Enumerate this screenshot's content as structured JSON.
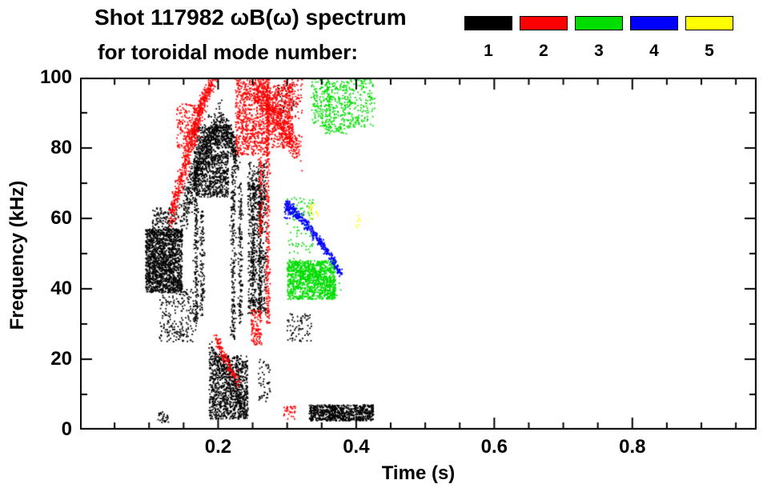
{
  "title": "Shot 117982 ωB(ω) spectrum",
  "subtitle": "for toroidal mode number:",
  "legend": {
    "modes": [
      {
        "label": "1",
        "color": "#000000"
      },
      {
        "label": "2",
        "color": "#ff0000"
      },
      {
        "label": "3",
        "color": "#00dd00"
      },
      {
        "label": "4",
        "color": "#0000ff"
      },
      {
        "label": "5",
        "color": "#ffff00"
      }
    ]
  },
  "chart_data": {
    "type": "scatter",
    "title": "Shot 117982 ωB(ω) spectrum for toroidal mode number 1-5",
    "xlabel": "Time (s)",
    "ylabel": "Frequency (kHz)",
    "xlim": [
      0,
      0.98
    ],
    "ylim": [
      0,
      100
    ],
    "x_ticks": {
      "major": [
        0.2,
        0.4,
        0.6,
        0.8
      ],
      "labels": [
        "0.2",
        "0.4",
        "0.6",
        "0.8"
      ],
      "minor_step": 0.05
    },
    "y_ticks": {
      "major": [
        0,
        20,
        40,
        60,
        80,
        100
      ],
      "labels": [
        "0",
        "20",
        "40",
        "60",
        "80",
        "100"
      ],
      "minor_step": 10
    },
    "grid": false,
    "legend_position": "top-right",
    "series": [
      {
        "name": "n=1",
        "color": "#000000",
        "clusters": [
          {
            "shape": "blob",
            "t": [
              0.095,
              0.148
            ],
            "f": [
              39,
              57
            ],
            "n": 1500
          },
          {
            "shape": "blob",
            "t": [
              0.105,
              0.14
            ],
            "f": [
              55,
              63
            ],
            "n": 150
          },
          {
            "shape": "blob",
            "t": [
              0.115,
              0.165
            ],
            "f": [
              25,
              40
            ],
            "n": 220
          },
          {
            "shape": "arc",
            "p0": [
              0.148,
              60
            ],
            "cp": [
              0.175,
              80
            ],
            "p1": [
              0.205,
              88
            ],
            "wt": 0.006,
            "wf": 5,
            "n": 500
          },
          {
            "shape": "blob",
            "t": [
              0.165,
              0.215
            ],
            "f": [
              66,
              86
            ],
            "n": 900
          },
          {
            "shape": "arc",
            "p0": [
              0.205,
              87
            ],
            "cp": [
              0.218,
              84
            ],
            "p1": [
              0.228,
              76
            ],
            "wt": 0.004,
            "wf": 4,
            "n": 220
          },
          {
            "shape": "vline",
            "t": 0.168,
            "f": [
              28,
              66
            ],
            "wt": 0.003,
            "n": 160
          },
          {
            "shape": "vline",
            "t": 0.177,
            "f": [
              32,
              62
            ],
            "wt": 0.003,
            "n": 110
          },
          {
            "shape": "vline",
            "t": 0.222,
            "f": [
              25,
              76
            ],
            "wt": 0.0035,
            "n": 200
          },
          {
            "shape": "vline",
            "t": 0.232,
            "f": [
              30,
              70
            ],
            "wt": 0.003,
            "n": 140
          },
          {
            "shape": "blob",
            "t": [
              0.243,
              0.27
            ],
            "f": [
              33,
              76
            ],
            "n": 520
          },
          {
            "shape": "vline",
            "t": 0.251,
            "f": [
              35,
              73
            ],
            "wt": 0.003,
            "n": 150
          },
          {
            "shape": "vline",
            "t": 0.261,
            "f": [
              33,
              70
            ],
            "wt": 0.003,
            "n": 150
          },
          {
            "shape": "blob",
            "t": [
              0.187,
              0.243
            ],
            "f": [
              3,
              21
            ],
            "n": 900
          },
          {
            "shape": "arc",
            "p0": [
              0.19,
              23
            ],
            "cp": [
              0.215,
              14
            ],
            "p1": [
              0.24,
              6
            ],
            "wt": 0.006,
            "wf": 3,
            "n": 200
          },
          {
            "shape": "blob",
            "t": [
              0.332,
              0.425
            ],
            "f": [
              2.5,
              7
            ],
            "n": 750
          },
          {
            "shape": "blob",
            "t": [
              0.113,
              0.128
            ],
            "f": [
              2,
              5
            ],
            "n": 30
          },
          {
            "shape": "blob",
            "t": [
              0.3,
              0.335
            ],
            "f": [
              25,
              33
            ],
            "n": 70
          },
          {
            "shape": "blob",
            "t": [
              0.285,
              0.31
            ],
            "f": [
              90,
              100
            ],
            "n": 40
          },
          {
            "shape": "blob",
            "t": [
              0.258,
              0.276
            ],
            "f": [
              8,
              20
            ],
            "n": 50
          }
        ]
      },
      {
        "name": "n=2",
        "color": "#ff0000",
        "clusters": [
          {
            "shape": "arc",
            "p0": [
              0.132,
              60
            ],
            "cp": [
              0.155,
              79
            ],
            "p1": [
              0.178,
              93
            ],
            "wt": 0.005,
            "wf": 3,
            "n": 520
          },
          {
            "shape": "arc",
            "p0": [
              0.178,
              93
            ],
            "cp": [
              0.187,
              97
            ],
            "p1": [
              0.197,
              101
            ],
            "wt": 0.004,
            "wf": 2.5,
            "n": 160
          },
          {
            "shape": "blob",
            "t": [
              0.14,
              0.168
            ],
            "f": [
              80,
              93
            ],
            "n": 150
          },
          {
            "shape": "blob",
            "t": [
              0.225,
              0.272
            ],
            "f": [
              78,
              101
            ],
            "n": 750
          },
          {
            "shape": "arc",
            "p0": [
              0.255,
              97
            ],
            "cp": [
              0.285,
              89
            ],
            "p1": [
              0.318,
              79
            ],
            "wt": 0.006,
            "wf": 4,
            "n": 420
          },
          {
            "shape": "blob",
            "t": [
              0.27,
              0.308
            ],
            "f": [
              80,
              98
            ],
            "n": 420
          },
          {
            "shape": "vline",
            "t": 0.272,
            "f": [
              30,
              100
            ],
            "wt": 0.0032,
            "n": 260
          },
          {
            "shape": "vline",
            "t": 0.262,
            "f": [
              55,
              80
            ],
            "wt": 0.003,
            "n": 80
          },
          {
            "shape": "arc",
            "p0": [
              0.196,
              26
            ],
            "cp": [
              0.211,
              20
            ],
            "p1": [
              0.228,
              13
            ],
            "wt": 0.004,
            "wf": 1.5,
            "n": 130
          },
          {
            "shape": "blob",
            "t": [
              0.248,
              0.263
            ],
            "f": [
              24,
              34
            ],
            "n": 110
          },
          {
            "shape": "blob",
            "t": [
              0.295,
              0.312
            ],
            "f": [
              3,
              7
            ],
            "n": 35
          },
          {
            "shape": "blob",
            "t": [
              0.296,
              0.322
            ],
            "f": [
              88,
              100
            ],
            "n": 90
          }
        ]
      },
      {
        "name": "n=3",
        "color": "#00dd00",
        "clusters": [
          {
            "shape": "blob",
            "t": [
              0.3,
              0.37
            ],
            "f": [
              37,
              48
            ],
            "n": 950
          },
          {
            "shape": "arc",
            "p0": [
              0.305,
              47
            ],
            "cp": [
              0.337,
              43
            ],
            "p1": [
              0.372,
              40
            ],
            "wt": 0.008,
            "wf": 2.5,
            "n": 220
          },
          {
            "shape": "blob",
            "t": [
              0.335,
              0.362
            ],
            "f": [
              86,
              100
            ],
            "n": 170
          },
          {
            "shape": "blob",
            "t": [
              0.355,
              0.392
            ],
            "f": [
              84,
              99
            ],
            "n": 230
          },
          {
            "shape": "blob",
            "t": [
              0.39,
              0.427
            ],
            "f": [
              86,
              101
            ],
            "n": 170
          },
          {
            "shape": "blob",
            "t": [
              0.3,
              0.338
            ],
            "f": [
              50,
              66
            ],
            "n": 90
          }
        ]
      },
      {
        "name": "n=4",
        "color": "#0000ff",
        "clusters": [
          {
            "shape": "arc",
            "p0": [
              0.298,
              64
            ],
            "cp": [
              0.337,
              58
            ],
            "p1": [
              0.378,
              44
            ],
            "wt": 0.003,
            "wf": 1.4,
            "n": 380
          },
          {
            "shape": "blob",
            "t": [
              0.296,
              0.306
            ],
            "f": [
              60,
              65
            ],
            "n": 40
          }
        ]
      },
      {
        "name": "n=5",
        "color": "#ffff00",
        "clusters": [
          {
            "shape": "blob",
            "t": [
              0.33,
              0.345
            ],
            "f": [
              60,
              64
            ],
            "n": 16
          },
          {
            "shape": "blob",
            "t": [
              0.398,
              0.408
            ],
            "f": [
              57,
              61
            ],
            "n": 8
          }
        ]
      }
    ]
  }
}
